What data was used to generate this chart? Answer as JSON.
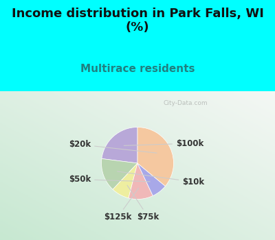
{
  "title": "Income distribution in Park Falls, WI\n(%)",
  "subtitle": "Multirace residents",
  "labels": [
    "$100k",
    "$10k",
    "$75k",
    "$125k",
    "$50k",
    "$20k"
  ],
  "sizes": [
    23,
    15,
    8,
    11,
    7,
    36
  ],
  "colors": [
    "#b8a8d8",
    "#b8d4b0",
    "#eeeea0",
    "#f0b8b8",
    "#a8a8e8",
    "#f5c8a0"
  ],
  "startangle": 90,
  "bg_top_color": "#00ffff",
  "bg_chart_left": "#c8e8d0",
  "bg_chart_right": "#f0f8f0",
  "watermark": "City-Data.com",
  "title_fontsize": 13,
  "subtitle_fontsize": 11,
  "subtitle_color": "#208080",
  "title_color": "#111111",
  "label_color": "#333333",
  "label_fontsize": 8.5
}
